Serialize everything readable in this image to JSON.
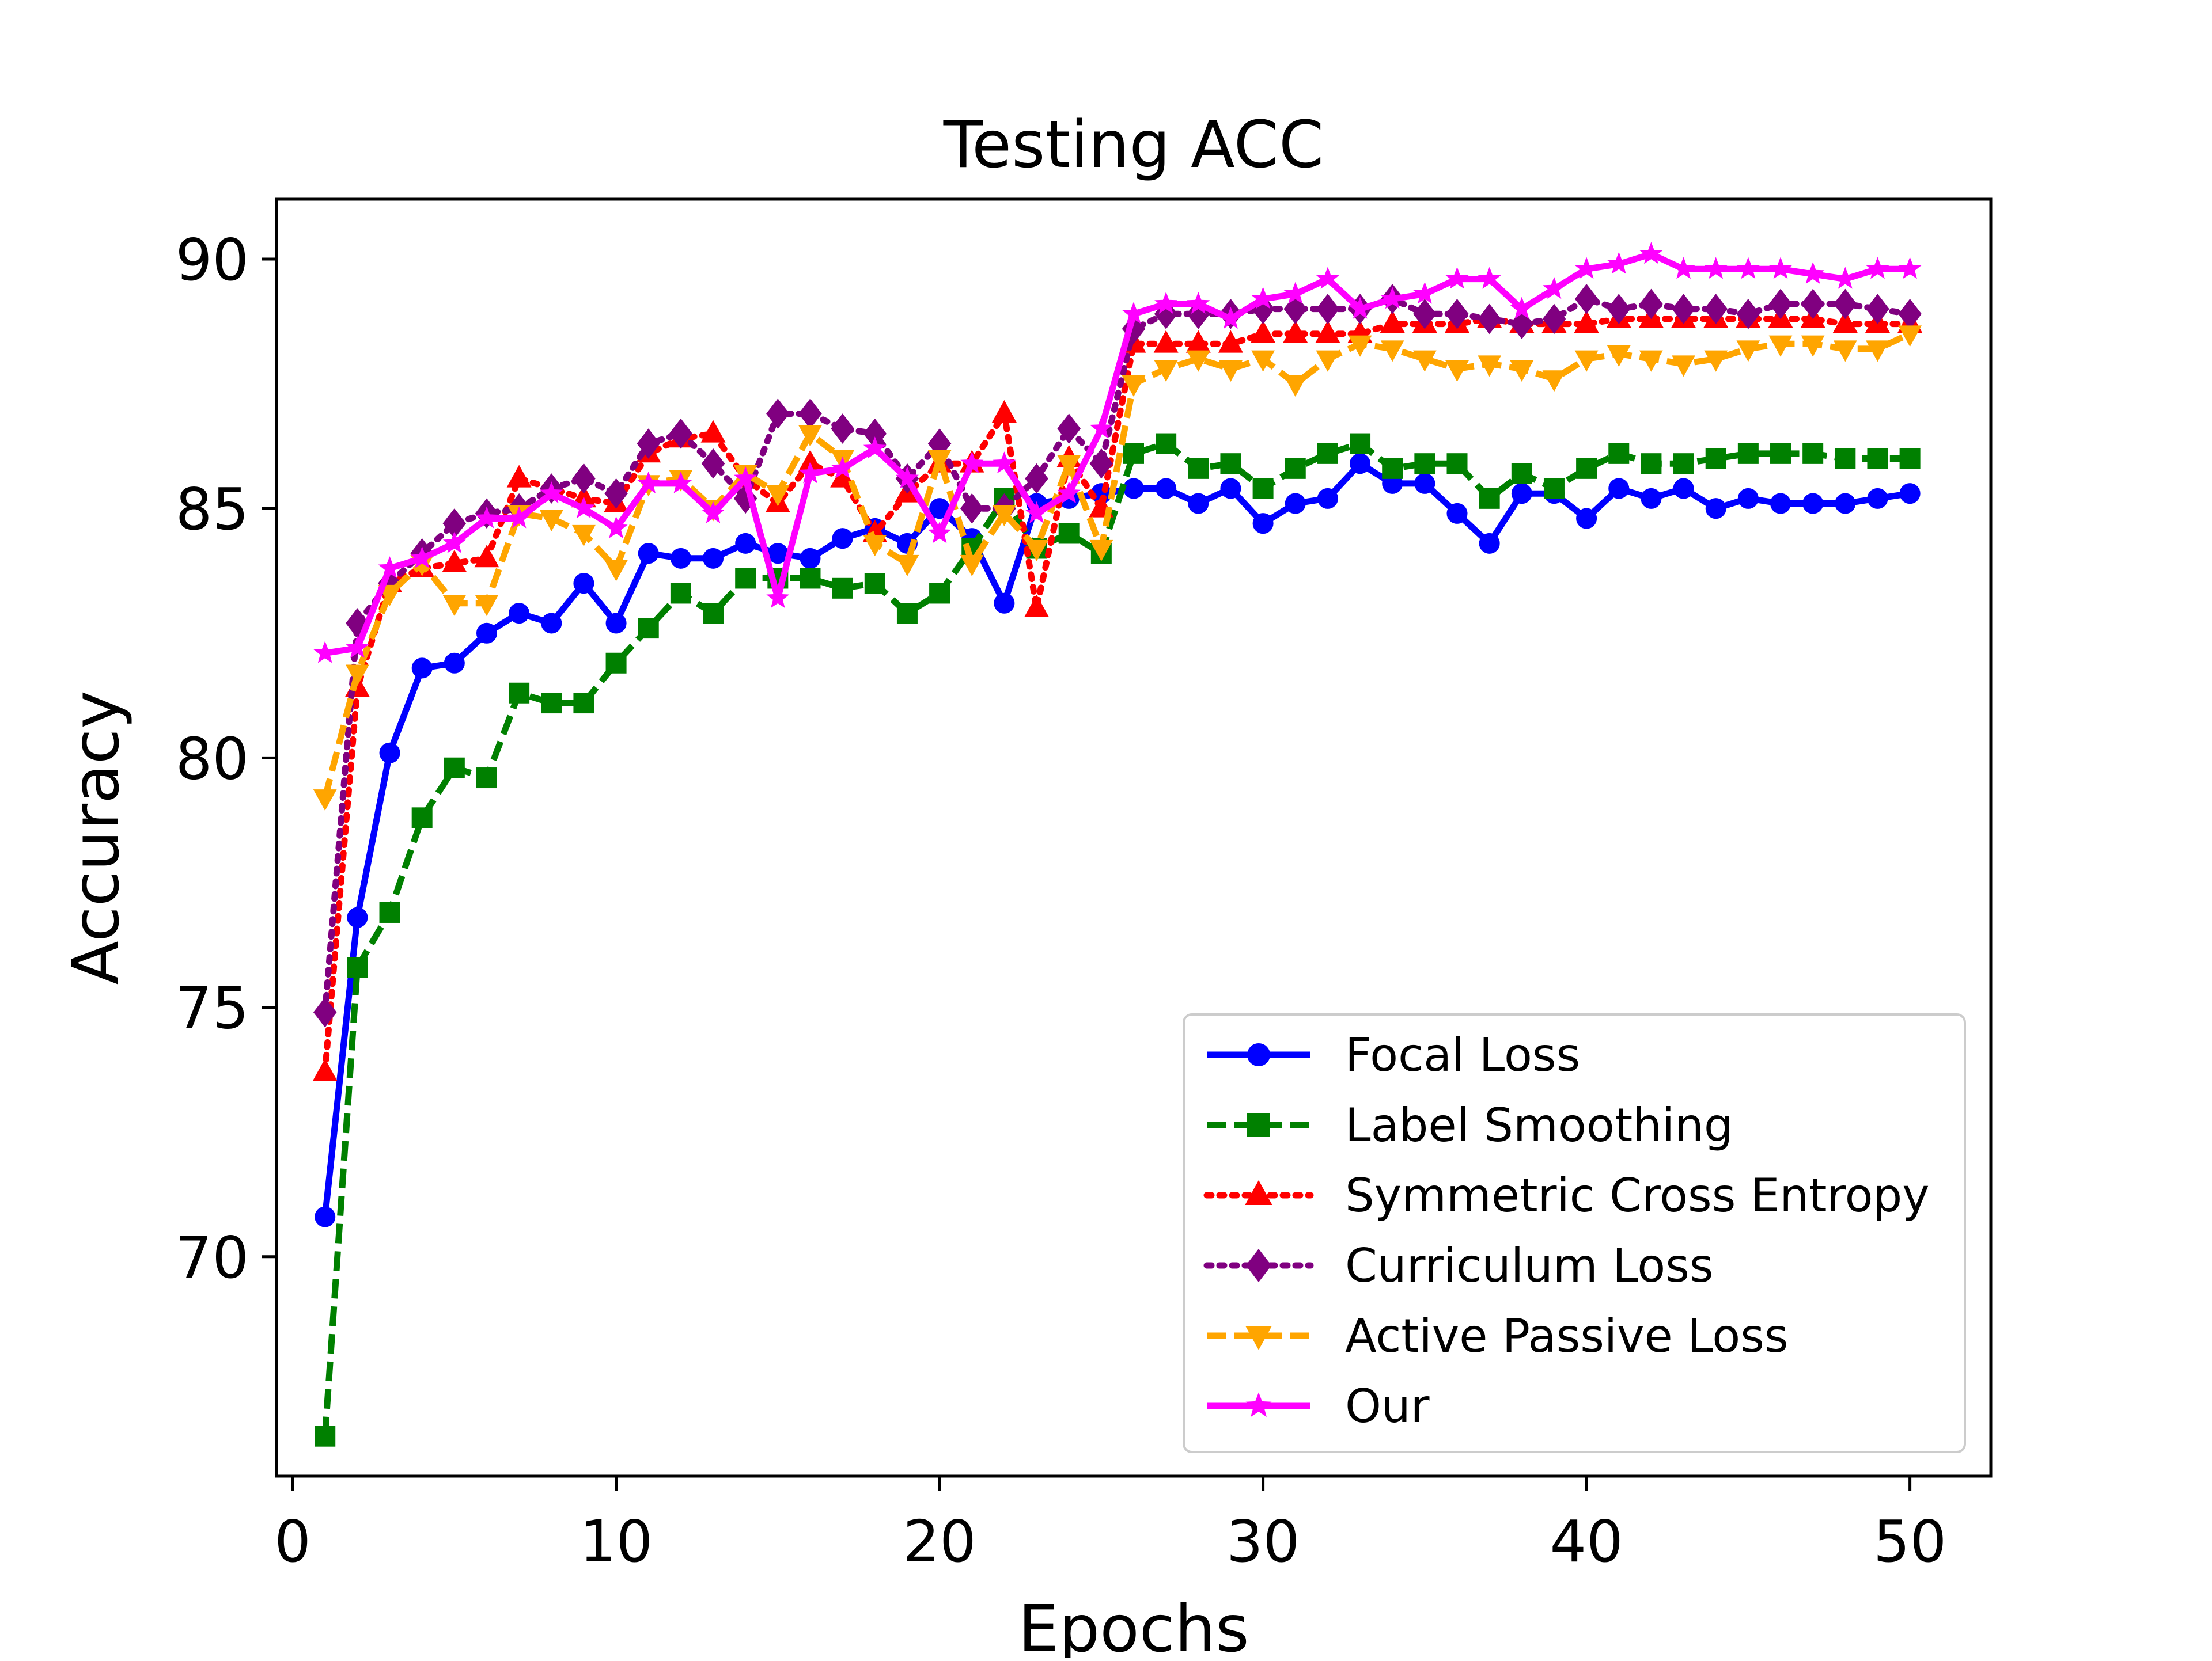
{
  "chart_data": {
    "type": "line",
    "title": "Testing ACC",
    "xlabel": "Epochs",
    "ylabel": "Accuracy",
    "xlim": [
      -0.5,
      52.5
    ],
    "ylim": [
      65.6,
      91.2
    ],
    "xticks": [
      0,
      10,
      20,
      30,
      40,
      50
    ],
    "yticks": [
      70,
      75,
      80,
      85,
      90
    ],
    "grid": false,
    "legend_position": "lower-right",
    "x": [
      1,
      2,
      3,
      4,
      5,
      6,
      7,
      8,
      9,
      10,
      11,
      12,
      13,
      14,
      15,
      16,
      17,
      18,
      19,
      20,
      21,
      22,
      23,
      24,
      25,
      26,
      27,
      28,
      29,
      30,
      31,
      32,
      33,
      34,
      35,
      36,
      37,
      38,
      39,
      40,
      41,
      42,
      43,
      44,
      45,
      46,
      47,
      48,
      49,
      50
    ],
    "series": [
      {
        "name": "Focal Loss",
        "color": "#0000ff",
        "linestyle": "solid",
        "marker": "circle",
        "values": [
          70.8,
          76.8,
          80.1,
          81.8,
          81.9,
          82.5,
          82.9,
          82.7,
          83.5,
          82.7,
          84.1,
          84.0,
          84.0,
          84.3,
          84.1,
          84.0,
          84.4,
          84.6,
          84.3,
          85.0,
          84.4,
          83.1,
          85.1,
          85.2,
          85.3,
          85.4,
          85.4,
          85.1,
          85.4,
          84.7,
          85.1,
          85.2,
          85.9,
          85.5,
          85.5,
          84.9,
          84.3,
          85.3,
          85.3,
          84.8,
          85.4,
          85.2,
          85.4,
          85.0,
          85.2,
          85.1,
          85.1,
          85.1,
          85.2,
          85.3
        ]
      },
      {
        "name": "Label Smoothing",
        "color": "#008000",
        "linestyle": "dashed",
        "marker": "square",
        "values": [
          66.4,
          75.8,
          76.9,
          78.8,
          79.8,
          79.6,
          81.3,
          81.1,
          81.1,
          81.9,
          82.6,
          83.3,
          82.9,
          83.6,
          83.6,
          83.6,
          83.4,
          83.5,
          82.9,
          83.3,
          84.2,
          85.2,
          84.2,
          84.5,
          84.1,
          86.1,
          86.3,
          85.8,
          85.9,
          85.4,
          85.8,
          86.1,
          86.3,
          85.8,
          85.9,
          85.9,
          85.2,
          85.7,
          85.4,
          85.8,
          86.1,
          85.9,
          85.9,
          86.0,
          86.1,
          86.1,
          86.1,
          86.0,
          86.0,
          86.0
        ]
      },
      {
        "name": "Symmetric Cross Entropy",
        "color": "#ff0000",
        "linestyle": "dotted",
        "marker": "triangle",
        "values": [
          73.7,
          81.4,
          83.5,
          83.8,
          83.9,
          84.0,
          85.6,
          85.4,
          85.2,
          85.1,
          86.1,
          86.4,
          86.5,
          85.6,
          85.1,
          85.9,
          85.6,
          84.5,
          85.3,
          85.9,
          85.9,
          86.9,
          83.0,
          86.0,
          85.0,
          88.3,
          88.3,
          88.3,
          88.3,
          88.5,
          88.5,
          88.5,
          88.5,
          88.7,
          88.7,
          88.7,
          88.8,
          88.7,
          88.7,
          88.7,
          88.8,
          88.8,
          88.8,
          88.8,
          88.8,
          88.8,
          88.8,
          88.7,
          88.7,
          88.7
        ]
      },
      {
        "name": "Curriculum Loss",
        "color": "#800080",
        "linestyle": "dotted",
        "marker": "diamond",
        "values": [
          74.9,
          82.7,
          83.5,
          84.1,
          84.7,
          84.9,
          85.0,
          85.4,
          85.6,
          85.3,
          86.3,
          86.5,
          85.9,
          85.2,
          86.9,
          86.9,
          86.6,
          86.5,
          85.6,
          86.3,
          85.0,
          85.0,
          85.6,
          86.6,
          85.9,
          88.6,
          88.9,
          88.9,
          88.9,
          89.0,
          89.0,
          89.0,
          89.0,
          89.2,
          88.9,
          88.9,
          88.8,
          88.7,
          88.8,
          89.2,
          89.0,
          89.1,
          89.0,
          89.0,
          88.9,
          89.1,
          89.1,
          89.1,
          89.0,
          88.9
        ]
      },
      {
        "name": "Active Passive Loss",
        "color": "#ffa500",
        "linestyle": "dashed",
        "marker": "triangle-down",
        "values": [
          79.2,
          81.7,
          83.3,
          83.9,
          83.1,
          83.1,
          84.9,
          84.8,
          84.5,
          83.8,
          85.5,
          85.6,
          85.0,
          85.7,
          85.3,
          86.5,
          86.0,
          84.3,
          83.9,
          86.0,
          83.9,
          84.9,
          84.2,
          85.9,
          84.2,
          87.5,
          87.8,
          88.0,
          87.8,
          88.0,
          87.5,
          88.0,
          88.3,
          88.2,
          88.0,
          87.8,
          87.9,
          87.8,
          87.6,
          88.0,
          88.1,
          88.0,
          87.9,
          88.0,
          88.2,
          88.3,
          88.3,
          88.2,
          88.2,
          88.5
        ]
      },
      {
        "name": "Our",
        "color": "#ff00ff",
        "linestyle": "solid",
        "marker": "star",
        "values": [
          82.1,
          82.2,
          83.8,
          84.0,
          84.3,
          84.8,
          84.8,
          85.3,
          85.0,
          84.6,
          85.5,
          85.5,
          84.9,
          85.6,
          83.2,
          85.7,
          85.8,
          86.2,
          85.6,
          84.5,
          85.9,
          85.9,
          84.9,
          85.3,
          86.6,
          88.9,
          89.1,
          89.1,
          88.8,
          89.2,
          89.3,
          89.6,
          89.0,
          89.2,
          89.3,
          89.6,
          89.6,
          89.0,
          89.4,
          89.8,
          89.9,
          90.1,
          89.8,
          89.8,
          89.8,
          89.8,
          89.7,
          89.6,
          89.8,
          89.8
        ]
      }
    ]
  }
}
